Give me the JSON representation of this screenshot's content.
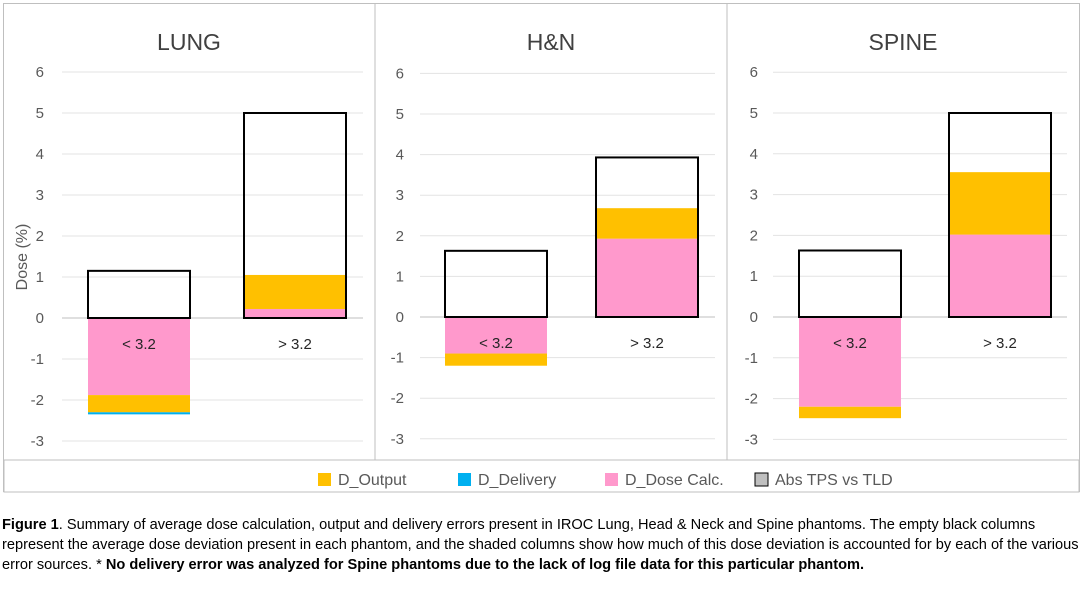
{
  "chart_data": {
    "type": "bar",
    "stacked": true,
    "ylabel": "Dose (%)",
    "ylim": [
      -3,
      6
    ],
    "yticks": [
      6,
      5,
      4,
      3,
      2,
      1,
      0,
      -1,
      -2,
      -3
    ],
    "grid": true,
    "legend_position": "bottom",
    "legend": [
      {
        "key": "output",
        "label": "D_Output",
        "color": "#ffc000"
      },
      {
        "key": "delivery",
        "label": "D_Delivery",
        "color": "#00b0f0"
      },
      {
        "key": "dosecalc",
        "label": "D_Dose Calc.",
        "color": "#ff99cc"
      },
      {
        "key": "abs",
        "label": "Abs TPS vs TLD",
        "color": "#bfbfbf"
      }
    ],
    "panels": [
      {
        "title": "LUNG",
        "categories": [
          "< 3.2",
          "> 3.2"
        ],
        "abs_tps_vs_tld": [
          1.15,
          5.0
        ],
        "d_dose_calc": [
          -1.88,
          0.22
        ],
        "d_output": [
          -0.42,
          0.83
        ],
        "d_delivery": [
          -0.05,
          0
        ]
      },
      {
        "title": "H&N",
        "categories": [
          "< 3.2",
          "> 3.2"
        ],
        "abs_tps_vs_tld": [
          1.63,
          3.93
        ],
        "d_dose_calc": [
          -0.9,
          1.93
        ],
        "d_output": [
          -0.3,
          0.75
        ],
        "d_delivery": [
          0,
          0
        ]
      },
      {
        "title": "SPINE",
        "categories": [
          "< 3.2",
          "> 3.2"
        ],
        "abs_tps_vs_tld": [
          1.63,
          5.0
        ],
        "d_dose_calc": [
          -2.2,
          2.02
        ],
        "d_output": [
          -0.28,
          1.53
        ],
        "d_delivery": [
          0,
          0
        ]
      }
    ]
  },
  "caption": {
    "label": "Figure 1",
    "text": ". Summary of average dose calculation, output and delivery errors present in IROC Lung, Head & Neck and Spine phantoms. The empty black columns represent the average dose deviation present in each phantom, and the shaded columns show how much of this dose deviation is accounted for by each of the various error sources. * ",
    "bold_note": "No delivery error was analyzed for Spine phantoms due to the lack of log file data for this particular phantom."
  }
}
